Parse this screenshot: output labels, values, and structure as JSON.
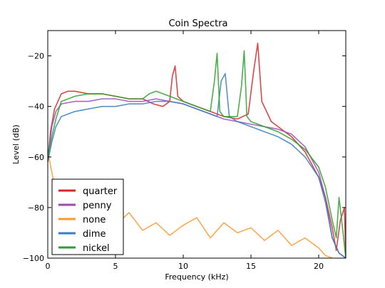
{
  "chart_data": {
    "type": "line",
    "title": "Coin Spectra",
    "xlabel": "Frequency (kHz)",
    "ylabel": "Level (dB)",
    "xlim": [
      0,
      22
    ],
    "ylim": [
      -100,
      -10
    ],
    "xticks": [
      0,
      5,
      10,
      15,
      20
    ],
    "yticks": [
      -100,
      -80,
      -60,
      -40,
      -20
    ],
    "grid": false,
    "legend_position": "lower-left",
    "series": [
      {
        "name": "quarter",
        "color": "#d62728",
        "x": [
          0,
          0.2,
          0.5,
          1,
          1.5,
          2,
          3,
          4,
          5,
          6,
          7,
          7.8,
          8.5,
          9,
          9.2,
          9.4,
          9.6,
          10,
          11,
          12,
          13,
          14,
          14.8,
          15.2,
          15.5,
          15.8,
          16.5,
          17,
          18,
          19,
          20,
          20.5,
          21,
          21.3,
          21.6,
          21.9,
          22
        ],
        "values": [
          -62,
          -50,
          -41,
          -35,
          -34,
          -34,
          -35,
          -35,
          -36,
          -37,
          -37,
          -39,
          -40,
          -38,
          -28,
          -24,
          -36,
          -38,
          -40,
          -42,
          -44,
          -45,
          -43,
          -26,
          -15,
          -38,
          -46,
          -48,
          -52,
          -58,
          -68,
          -76,
          -88,
          -97,
          -85,
          -80,
          -100
        ]
      },
      {
        "name": "penny",
        "color": "#9b4ab5",
        "x": [
          0,
          0.3,
          0.6,
          1,
          2,
          3,
          4,
          5,
          6,
          7,
          8,
          9,
          10,
          11,
          12,
          13,
          14,
          15,
          16,
          17,
          18,
          19,
          20,
          20.5,
          21,
          21.5,
          22
        ],
        "values": [
          -60,
          -48,
          -42,
          -39,
          -38,
          -38,
          -37,
          -37,
          -38,
          -38,
          -37,
          -38,
          -39,
          -41,
          -43,
          -45,
          -46,
          -47,
          -48,
          -49,
          -51,
          -56,
          -66,
          -76,
          -92,
          -98,
          -100
        ]
      },
      {
        "name": "none",
        "color": "#ff9933",
        "x": [
          0,
          0.3,
          0.6,
          1,
          1.5,
          2,
          3,
          4,
          5,
          6,
          7,
          8,
          9,
          10,
          11,
          12,
          13,
          14,
          15,
          16,
          17,
          18,
          19,
          20,
          20.5,
          21
        ],
        "values": [
          -58,
          -66,
          -74,
          -80,
          -86,
          -90,
          -84,
          -91,
          -87,
          -82,
          -89,
          -86,
          -91,
          -87,
          -84,
          -92,
          -86,
          -90,
          -88,
          -93,
          -89,
          -95,
          -92,
          -96,
          -99,
          -100
        ]
      },
      {
        "name": "dime",
        "color": "#3a7ebf",
        "x": [
          0,
          0.3,
          0.6,
          1,
          2,
          3,
          4,
          5,
          6,
          7,
          8,
          9,
          10,
          11,
          12,
          12.5,
          12.8,
          13.1,
          13.4,
          14,
          15,
          16,
          17,
          18,
          19,
          20,
          20.5,
          21,
          21.5,
          22
        ],
        "values": [
          -62,
          -54,
          -48,
          -44,
          -42,
          -41,
          -40,
          -40,
          -39,
          -39,
          -38,
          -38,
          -39,
          -41,
          -43,
          -44,
          -30,
          -27,
          -44,
          -46,
          -48,
          -50,
          -52,
          -55,
          -60,
          -68,
          -78,
          -92,
          -98,
          -100
        ]
      },
      {
        "name": "nickel",
        "color": "#2ca02c",
        "x": [
          0,
          0.3,
          0.6,
          1,
          2,
          3,
          4,
          5,
          6,
          7,
          7.5,
          8,
          9,
          10,
          11,
          12,
          12.3,
          12.5,
          12.7,
          13,
          14,
          14.3,
          14.5,
          14.7,
          15,
          16,
          17,
          18,
          19,
          20,
          20.5,
          21,
          21.3,
          21.5,
          21.8,
          22
        ],
        "values": [
          -60,
          -52,
          -45,
          -38,
          -36,
          -35,
          -35,
          -36,
          -37,
          -37,
          -35,
          -34,
          -36,
          -38,
          -40,
          -42,
          -30,
          -19,
          -42,
          -44,
          -44,
          -32,
          -18,
          -44,
          -46,
          -48,
          -50,
          -53,
          -57,
          -64,
          -72,
          -85,
          -92,
          -76,
          -90,
          -100
        ]
      }
    ]
  }
}
